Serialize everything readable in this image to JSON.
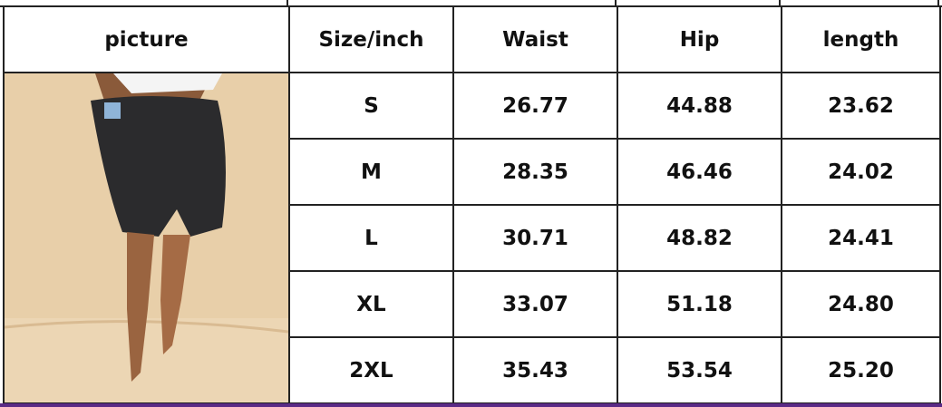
{
  "table": {
    "headers": [
      "picture",
      "Size/inch",
      "Waist",
      "Hip",
      "length"
    ],
    "rows": [
      {
        "size": "S",
        "waist": "26.77",
        "hip": "44.88",
        "length": "23.62"
      },
      {
        "size": "M",
        "waist": "28.35",
        "hip": "46.46",
        "length": "24.02"
      },
      {
        "size": "L",
        "waist": "30.71",
        "hip": "48.82",
        "length": "24.41"
      },
      {
        "size": "XL",
        "waist": "33.07",
        "hip": "51.18",
        "length": "24.80"
      },
      {
        "size": "2XL",
        "waist": "35.43",
        "hip": "53.54",
        "length": "25.20"
      }
    ]
  },
  "colors": {
    "border": "#222222",
    "accent_bar": "#5a2a86",
    "photo_bg": "#ead3b3"
  }
}
